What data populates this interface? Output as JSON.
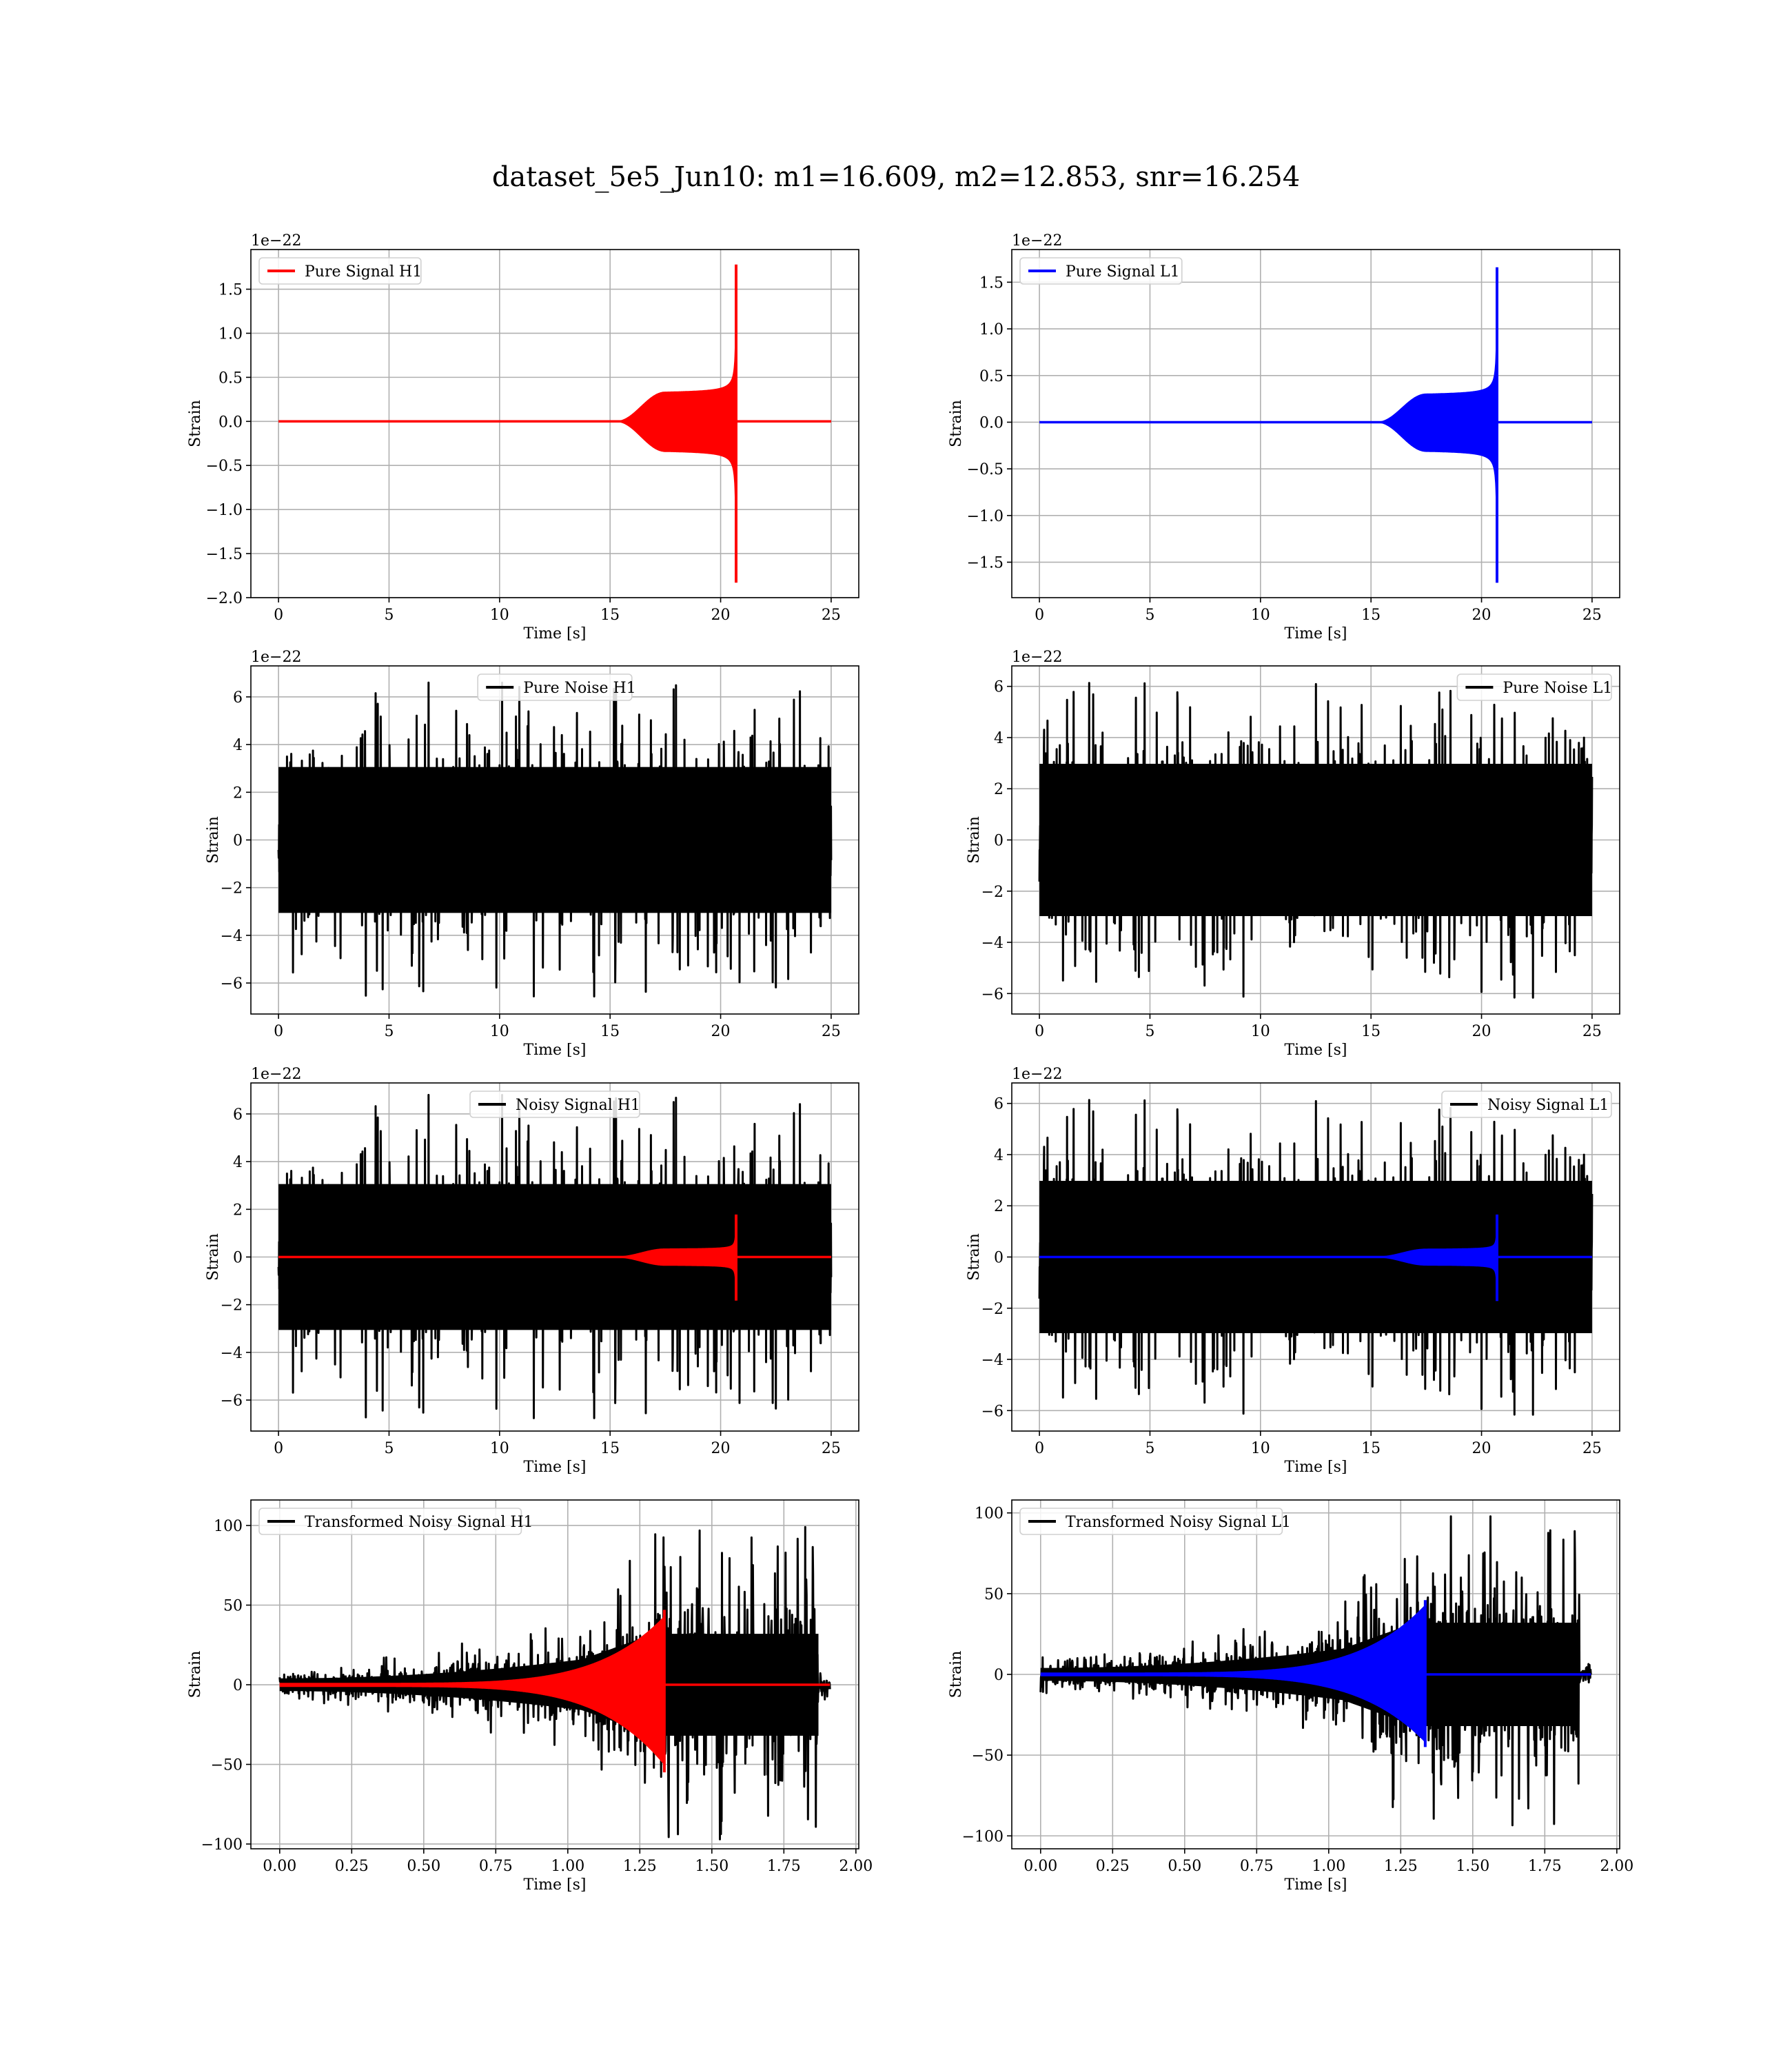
{
  "figure": {
    "title": "dataset_5e5_Jun10: m1=16.609, m2=12.853, snr=16.254"
  },
  "chart_data": [
    {
      "id": "pure-signal-h1",
      "type": "line",
      "xlabel": "Time [s]",
      "ylabel": "Strain",
      "offset_text": "1e−22",
      "xlim": [
        -1.25,
        26.25
      ],
      "ylim": [
        -2.0,
        1.95
      ],
      "xticks": [
        0,
        5,
        10,
        15,
        20,
        25
      ],
      "yticks": [
        -2.0,
        -1.5,
        -1.0,
        -0.5,
        0.0,
        0.5,
        1.0,
        1.5
      ],
      "ytick_labels": [
        "−2.0",
        "−1.5",
        "−1.0",
        "−0.5",
        "0.0",
        "0.5",
        "1.0",
        "1.5"
      ],
      "grid": true,
      "legend_position": "upper-left",
      "series": [
        {
          "name": "Pure Signal H1",
          "color": "#ff0000",
          "kind": "chirp",
          "params": {
            "t0": 0,
            "t1": 25,
            "tc": 20.7,
            "onset": 15.5,
            "ramp_end": 17.5,
            "plateau": 0.33,
            "peak_pos": 1.78,
            "peak_neg": -1.83,
            "base": 0
          }
        }
      ]
    },
    {
      "id": "pure-signal-l1",
      "type": "line",
      "xlabel": "Time [s]",
      "ylabel": "Strain",
      "offset_text": "1e−22",
      "xlim": [
        -1.25,
        26.25
      ],
      "ylim": [
        -1.88,
        1.85
      ],
      "xticks": [
        0,
        5,
        10,
        15,
        20,
        25
      ],
      "yticks": [
        -1.5,
        -1.0,
        -0.5,
        0.0,
        0.5,
        1.0,
        1.5
      ],
      "ytick_labels": [
        "−1.5",
        "−1.0",
        "−0.5",
        "0.0",
        "0.5",
        "1.0",
        "1.5"
      ],
      "grid": true,
      "legend_position": "upper-left",
      "series": [
        {
          "name": "Pure Signal L1",
          "color": "#0000ff",
          "kind": "chirp",
          "params": {
            "t0": 0,
            "t1": 25,
            "tc": 20.7,
            "onset": 15.5,
            "ramp_end": 17.5,
            "plateau": 0.3,
            "peak_pos": 1.66,
            "peak_neg": -1.72,
            "base": 0
          }
        }
      ]
    },
    {
      "id": "pure-noise-h1",
      "type": "line",
      "xlabel": "Time [s]",
      "ylabel": "Strain",
      "offset_text": "1e−22",
      "xlim": [
        -1.25,
        26.25
      ],
      "ylim": [
        -7.3,
        7.3
      ],
      "xticks": [
        0,
        5,
        10,
        15,
        20,
        25
      ],
      "yticks": [
        -6,
        -4,
        -2,
        0,
        2,
        4,
        6
      ],
      "ytick_labels": [
        "−6",
        "−4",
        "−2",
        "0",
        "2",
        "4",
        "6"
      ],
      "grid": true,
      "legend_position": "upper-center",
      "series": [
        {
          "name": "Pure Noise H1",
          "color": "#000000",
          "kind": "noise",
          "params": {
            "t0": 0,
            "t1": 25,
            "band": 3.6,
            "spike_max": 6.6,
            "seed": 11
          }
        }
      ]
    },
    {
      "id": "pure-noise-l1",
      "type": "line",
      "xlabel": "Time [s]",
      "ylabel": "Strain",
      "offset_text": "1e−22",
      "xlim": [
        -1.25,
        26.25
      ],
      "ylim": [
        -6.8,
        6.8
      ],
      "xticks": [
        0,
        5,
        10,
        15,
        20,
        25
      ],
      "yticks": [
        -6,
        -4,
        -2,
        0,
        2,
        4,
        6
      ],
      "ytick_labels": [
        "−6",
        "−4",
        "−2",
        "0",
        "2",
        "4",
        "6"
      ],
      "grid": true,
      "legend_position": "upper-right",
      "series": [
        {
          "name": "Pure Noise L1",
          "color": "#000000",
          "kind": "noise",
          "params": {
            "t0": 0,
            "t1": 25,
            "band": 3.5,
            "spike_max": 6.2,
            "seed": 23
          }
        }
      ]
    },
    {
      "id": "noisy-signal-h1",
      "type": "line",
      "xlabel": "Time [s]",
      "ylabel": "Strain",
      "offset_text": "1e−22",
      "xlim": [
        -1.25,
        26.25
      ],
      "ylim": [
        -7.3,
        7.3
      ],
      "xticks": [
        0,
        5,
        10,
        15,
        20,
        25
      ],
      "yticks": [
        -6,
        -4,
        -2,
        0,
        2,
        4,
        6
      ],
      "ytick_labels": [
        "−6",
        "−4",
        "−2",
        "0",
        "2",
        "4",
        "6"
      ],
      "grid": true,
      "legend_position": "upper-center",
      "series": [
        {
          "name": "Noisy Signal H1",
          "color": "#000000",
          "kind": "noise",
          "params": {
            "t0": 0,
            "t1": 25,
            "band": 3.6,
            "spike_max": 6.8,
            "seed": 11
          }
        },
        {
          "name": "",
          "color": "#ff0000",
          "kind": "chirp",
          "params": {
            "t0": 0,
            "t1": 25,
            "tc": 20.7,
            "onset": 15.5,
            "ramp_end": 17.5,
            "plateau": 0.33,
            "peak_pos": 1.78,
            "peak_neg": -1.83,
            "base": 0
          }
        }
      ]
    },
    {
      "id": "noisy-signal-l1",
      "type": "line",
      "xlabel": "Time [s]",
      "ylabel": "Strain",
      "offset_text": "1e−22",
      "xlim": [
        -1.25,
        26.25
      ],
      "ylim": [
        -6.8,
        6.8
      ],
      "xticks": [
        0,
        5,
        10,
        15,
        20,
        25
      ],
      "yticks": [
        -6,
        -4,
        -2,
        0,
        2,
        4,
        6
      ],
      "ytick_labels": [
        "−6",
        "−4",
        "−2",
        "0",
        "2",
        "4",
        "6"
      ],
      "grid": true,
      "legend_position": "upper-right",
      "series": [
        {
          "name": "Noisy Signal L1",
          "color": "#000000",
          "kind": "noise",
          "params": {
            "t0": 0,
            "t1": 25,
            "band": 3.5,
            "spike_max": 6.2,
            "seed": 23
          }
        },
        {
          "name": "",
          "color": "#0000ff",
          "kind": "chirp",
          "params": {
            "t0": 0,
            "t1": 25,
            "tc": 20.7,
            "onset": 15.5,
            "ramp_end": 17.5,
            "plateau": 0.3,
            "peak_pos": 1.66,
            "peak_neg": -1.72,
            "base": 0
          }
        }
      ]
    },
    {
      "id": "transformed-noisy-signal-h1",
      "type": "line",
      "xlabel": "Time [s]",
      "ylabel": "Strain",
      "offset_text": "",
      "xlim": [
        -0.1,
        2.01
      ],
      "ylim": [
        -103,
        116
      ],
      "xticks": [
        0.0,
        0.25,
        0.5,
        0.75,
        1.0,
        1.25,
        1.5,
        1.75,
        2.0
      ],
      "xtick_labels": [
        "0.00",
        "0.25",
        "0.50",
        "0.75",
        "1.00",
        "1.25",
        "1.50",
        "1.75",
        "2.00"
      ],
      "yticks": [
        -100,
        -50,
        0,
        50,
        100
      ],
      "ytick_labels": [
        "−100",
        "−50",
        "0",
        "50",
        "100"
      ],
      "grid": true,
      "legend_position": "upper-left",
      "series": [
        {
          "name": "Transformed Noisy Signal H1",
          "color": "#000000",
          "kind": "wnoise",
          "params": {
            "t0": 0,
            "t1": 1.91,
            "tstop": 1.87,
            "seed": 31,
            "max": 108
          }
        },
        {
          "name": "",
          "color": "#ff0000",
          "kind": "wchirp",
          "params": {
            "t0": 0,
            "t1": 1.91,
            "tc": 1.335,
            "peak_pos": 47,
            "peak_neg": -55
          }
        }
      ]
    },
    {
      "id": "transformed-noisy-signal-l1",
      "type": "line",
      "xlabel": "Time [s]",
      "ylabel": "Strain",
      "offset_text": "",
      "xlim": [
        -0.1,
        2.01
      ],
      "ylim": [
        -108,
        108
      ],
      "xticks": [
        0.0,
        0.25,
        0.5,
        0.75,
        1.0,
        1.25,
        1.5,
        1.75,
        2.0
      ],
      "xtick_labels": [
        "0.00",
        "0.25",
        "0.50",
        "0.75",
        "1.00",
        "1.25",
        "1.50",
        "1.75",
        "2.00"
      ],
      "yticks": [
        -100,
        -50,
        0,
        50,
        100
      ],
      "ytick_labels": [
        "−100",
        "−50",
        "0",
        "50",
        "100"
      ],
      "grid": true,
      "legend_position": "upper-left",
      "series": [
        {
          "name": "Transformed Noisy Signal L1",
          "color": "#000000",
          "kind": "wnoise",
          "params": {
            "t0": 0,
            "t1": 1.91,
            "tstop": 1.87,
            "seed": 47,
            "max": 103
          }
        },
        {
          "name": "",
          "color": "#0000ff",
          "kind": "wchirp",
          "params": {
            "t0": 0,
            "t1": 1.91,
            "tc": 1.335,
            "peak_pos": 46,
            "peak_neg": -45
          }
        }
      ]
    }
  ]
}
